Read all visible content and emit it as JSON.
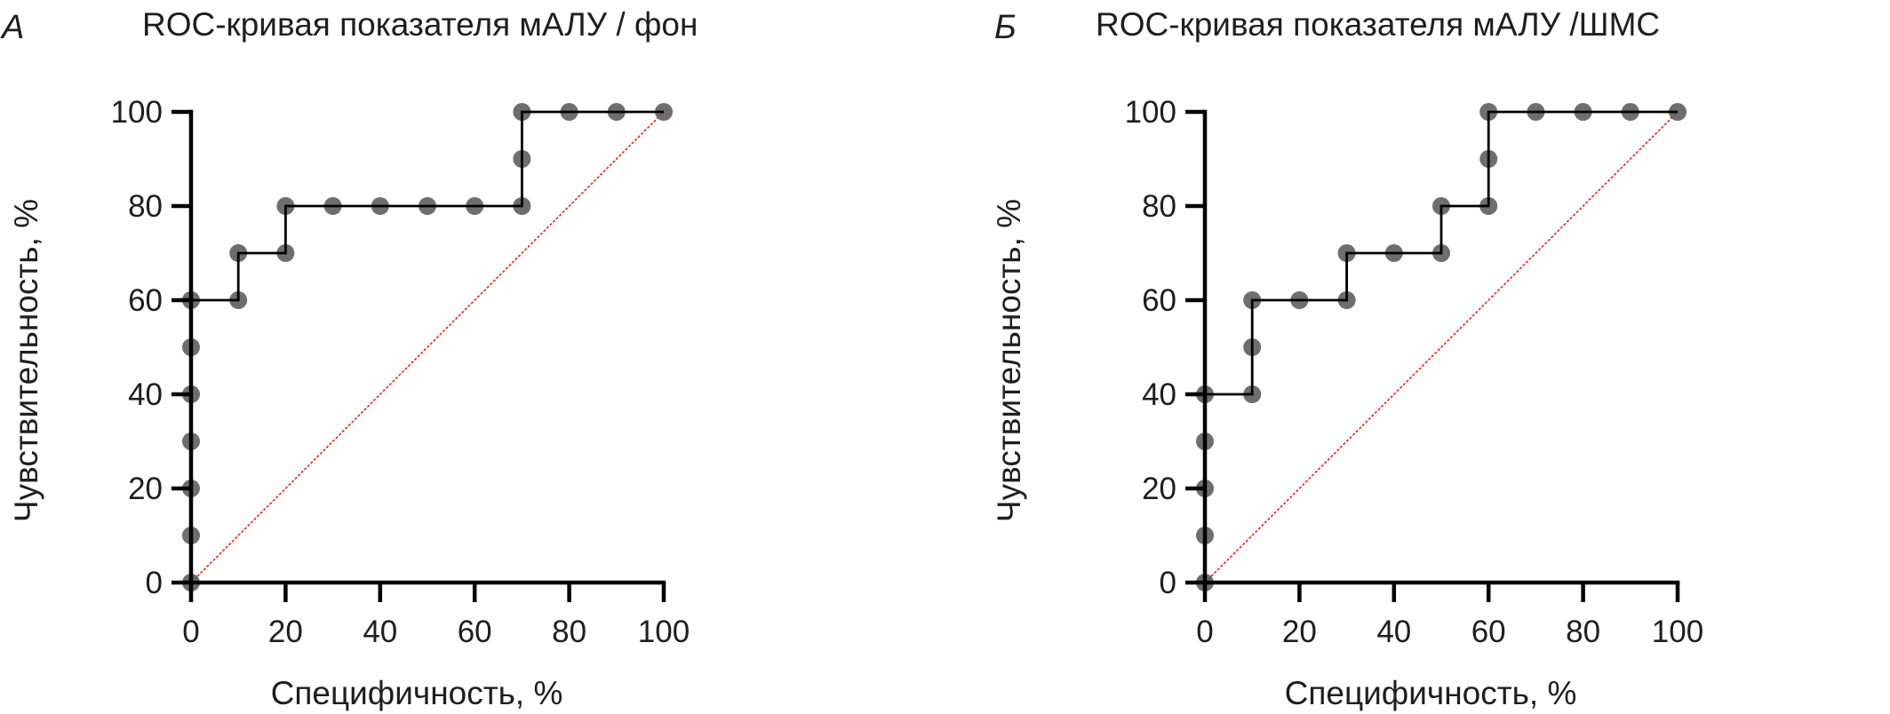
{
  "chart_data": [
    {
      "type": "line",
      "panel_label": "А",
      "title": "ROC-кривая показателя мАЛУ / фон",
      "xlabel": "Специфичность, %",
      "ylabel": "Чувствительность, %",
      "xlim": [
        0,
        100
      ],
      "ylim": [
        0,
        100
      ],
      "xticks": [
        0,
        20,
        40,
        60,
        80,
        100
      ],
      "yticks": [
        0,
        20,
        40,
        60,
        80,
        100
      ],
      "grid": false,
      "series": [
        {
          "name": "ROC",
          "style": "step",
          "color": "#000000",
          "marker_color": "#555555",
          "points": [
            [
              0,
              0
            ],
            [
              0,
              10
            ],
            [
              0,
              20
            ],
            [
              0,
              30
            ],
            [
              0,
              40
            ],
            [
              0,
              50
            ],
            [
              0,
              60
            ],
            [
              10,
              60
            ],
            [
              10,
              70
            ],
            [
              20,
              70
            ],
            [
              20,
              80
            ],
            [
              30,
              80
            ],
            [
              40,
              80
            ],
            [
              50,
              80
            ],
            [
              60,
              80
            ],
            [
              70,
              80
            ],
            [
              70,
              90
            ],
            [
              70,
              100
            ],
            [
              80,
              100
            ],
            [
              90,
              100
            ],
            [
              100,
              100
            ]
          ]
        },
        {
          "name": "reference",
          "style": "dashed",
          "color": "#e8221f",
          "points": [
            [
              0,
              0
            ],
            [
              100,
              100
            ]
          ]
        }
      ]
    },
    {
      "type": "line",
      "panel_label": "Б",
      "title": "ROC-кривая показателя мАЛУ /ШМС",
      "xlabel": "Специфичность, %",
      "ylabel": "Чувствительность, %",
      "xlim": [
        0,
        100
      ],
      "ylim": [
        0,
        100
      ],
      "xticks": [
        0,
        20,
        40,
        60,
        80,
        100
      ],
      "yticks": [
        0,
        20,
        40,
        60,
        80,
        100
      ],
      "grid": false,
      "series": [
        {
          "name": "ROC",
          "style": "step",
          "color": "#000000",
          "marker_color": "#555555",
          "points": [
            [
              0,
              0
            ],
            [
              0,
              10
            ],
            [
              0,
              20
            ],
            [
              0,
              30
            ],
            [
              0,
              40
            ],
            [
              10,
              40
            ],
            [
              10,
              50
            ],
            [
              10,
              60
            ],
            [
              20,
              60
            ],
            [
              30,
              60
            ],
            [
              30,
              70
            ],
            [
              40,
              70
            ],
            [
              50,
              70
            ],
            [
              50,
              80
            ],
            [
              60,
              80
            ],
            [
              60,
              90
            ],
            [
              60,
              100
            ],
            [
              70,
              100
            ],
            [
              80,
              100
            ],
            [
              90,
              100
            ],
            [
              100,
              100
            ]
          ]
        },
        {
          "name": "reference",
          "style": "dashed",
          "color": "#e8221f",
          "points": [
            [
              0,
              0
            ],
            [
              100,
              100
            ]
          ]
        }
      ]
    }
  ]
}
